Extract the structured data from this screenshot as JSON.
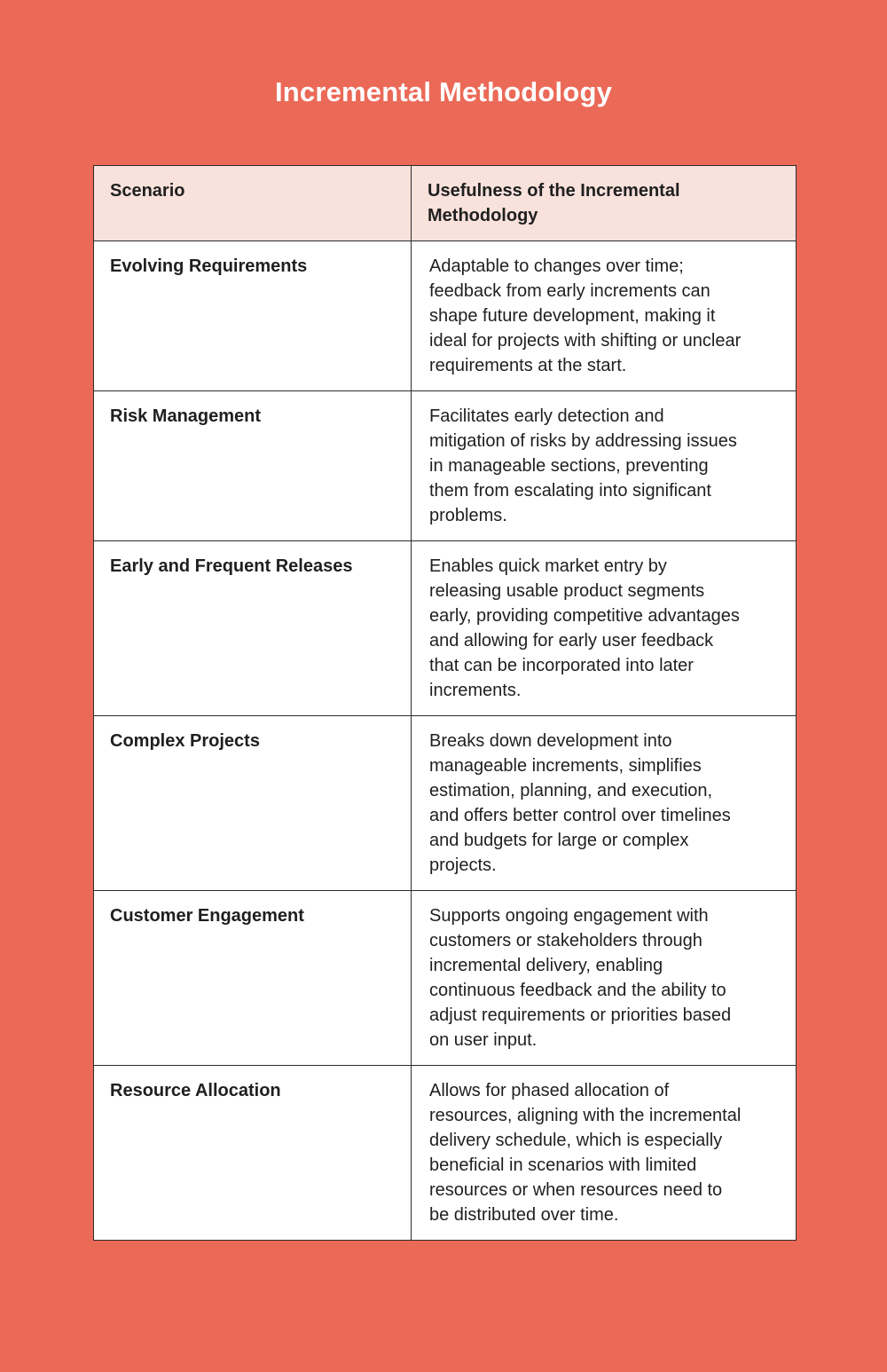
{
  "page": {
    "title": "Incremental Methodology"
  },
  "colors": {
    "background": "#EB6A57",
    "header_bg": "#F9E2DC",
    "cell_bg": "#FFFFFF",
    "border": "#2B2B2B",
    "title_text": "#FFFFFF",
    "body_text": "#1F1F1F"
  },
  "table": {
    "headers": [
      "Scenario",
      "Usefulness of the Incremental Methodology"
    ],
    "rows": [
      {
        "scenario": "Evolving Requirements",
        "usefulness": "Adaptable to changes over time; feedback from early increments can shape future development, making it ideal for projects with shifting or unclear requirements at the start."
      },
      {
        "scenario": "Risk Management",
        "usefulness": "Facilitates early detection and mitigation of risks by addressing issues in manageable sections, preventing them from escalating into significant problems."
      },
      {
        "scenario": "Early and Frequent Releases",
        "usefulness": "Enables quick market entry by releasing usable product segments early, providing competitive advantages and allowing for early user feedback that can be incorporated into later increments."
      },
      {
        "scenario": "Complex Projects",
        "usefulness": "Breaks down development into manageable increments, simplifies estimation, planning, and execution, and offers better control over timelines and budgets for large or complex projects."
      },
      {
        "scenario": "Customer Engagement",
        "usefulness": "Supports ongoing engagement with customers or stakeholders through incremental delivery, enabling continuous feedback and the ability to adjust requirements or priorities based on user input."
      },
      {
        "scenario": "Resource Allocation",
        "usefulness": "Allows for phased allocation of resources, aligning with the incremental delivery schedule, which is especially beneficial in scenarios with limited resources or when resources need to be distributed over time."
      }
    ]
  }
}
